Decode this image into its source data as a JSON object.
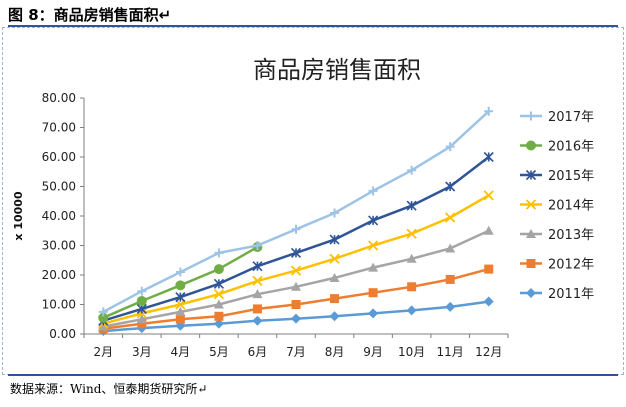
{
  "figure": {
    "title": "图 8：商品房销售面积↵",
    "source": "数据来源：Wind、恒泰期货研究所↵"
  },
  "chart_data": {
    "type": "line",
    "title": "商品房销售面积",
    "ylabel": "x 10000",
    "xlabel": "",
    "categories": [
      "2月",
      "3月",
      "4月",
      "5月",
      "6月",
      "7月",
      "8月",
      "9月",
      "10月",
      "11月",
      "12月"
    ],
    "ylim": [
      0,
      80
    ],
    "yticks": [
      "0.00",
      "10.00",
      "20.00",
      "30.00",
      "40.00",
      "50.00",
      "60.00",
      "70.00",
      "80.00"
    ],
    "grid": false,
    "legend_position": "right",
    "series": [
      {
        "name": "2017年",
        "color": "#9dc3e6",
        "marker": "plus",
        "values": [
          7.5,
          14.5,
          21,
          27.5,
          30,
          35.5,
          41,
          48.5,
          55.5,
          63.5,
          75.5
        ]
      },
      {
        "name": "2016年",
        "color": "#70ad47",
        "marker": "circle",
        "values": [
          5.5,
          11.2,
          16.5,
          22,
          29.5,
          null,
          null,
          null,
          null,
          null,
          null
        ]
      },
      {
        "name": "2015年",
        "color": "#2f5597",
        "marker": "star",
        "values": [
          4.5,
          8.5,
          12.5,
          17,
          23,
          27.5,
          32,
          38.5,
          43.5,
          50,
          60
        ]
      },
      {
        "name": "2014年",
        "color": "#ffc000",
        "marker": "x",
        "values": [
          3.5,
          7,
          10,
          13.5,
          18,
          21.5,
          25.5,
          30,
          34,
          39.5,
          47
        ]
      },
      {
        "name": "2013年",
        "color": "#a5a5a5",
        "marker": "triangle",
        "values": [
          2.5,
          5,
          7.5,
          10,
          13.5,
          16,
          19,
          22.5,
          25.5,
          29,
          35
        ]
      },
      {
        "name": "2012年",
        "color": "#ed7d31",
        "marker": "square",
        "values": [
          1.8,
          3.5,
          5,
          6,
          8.5,
          10,
          12,
          14,
          16,
          18.5,
          22
        ]
      },
      {
        "name": "2011年",
        "color": "#5b9bd5",
        "marker": "diamond",
        "values": [
          1,
          2,
          2.8,
          3.5,
          4.5,
          5.2,
          6,
          7,
          8,
          9.2,
          11
        ]
      }
    ]
  }
}
